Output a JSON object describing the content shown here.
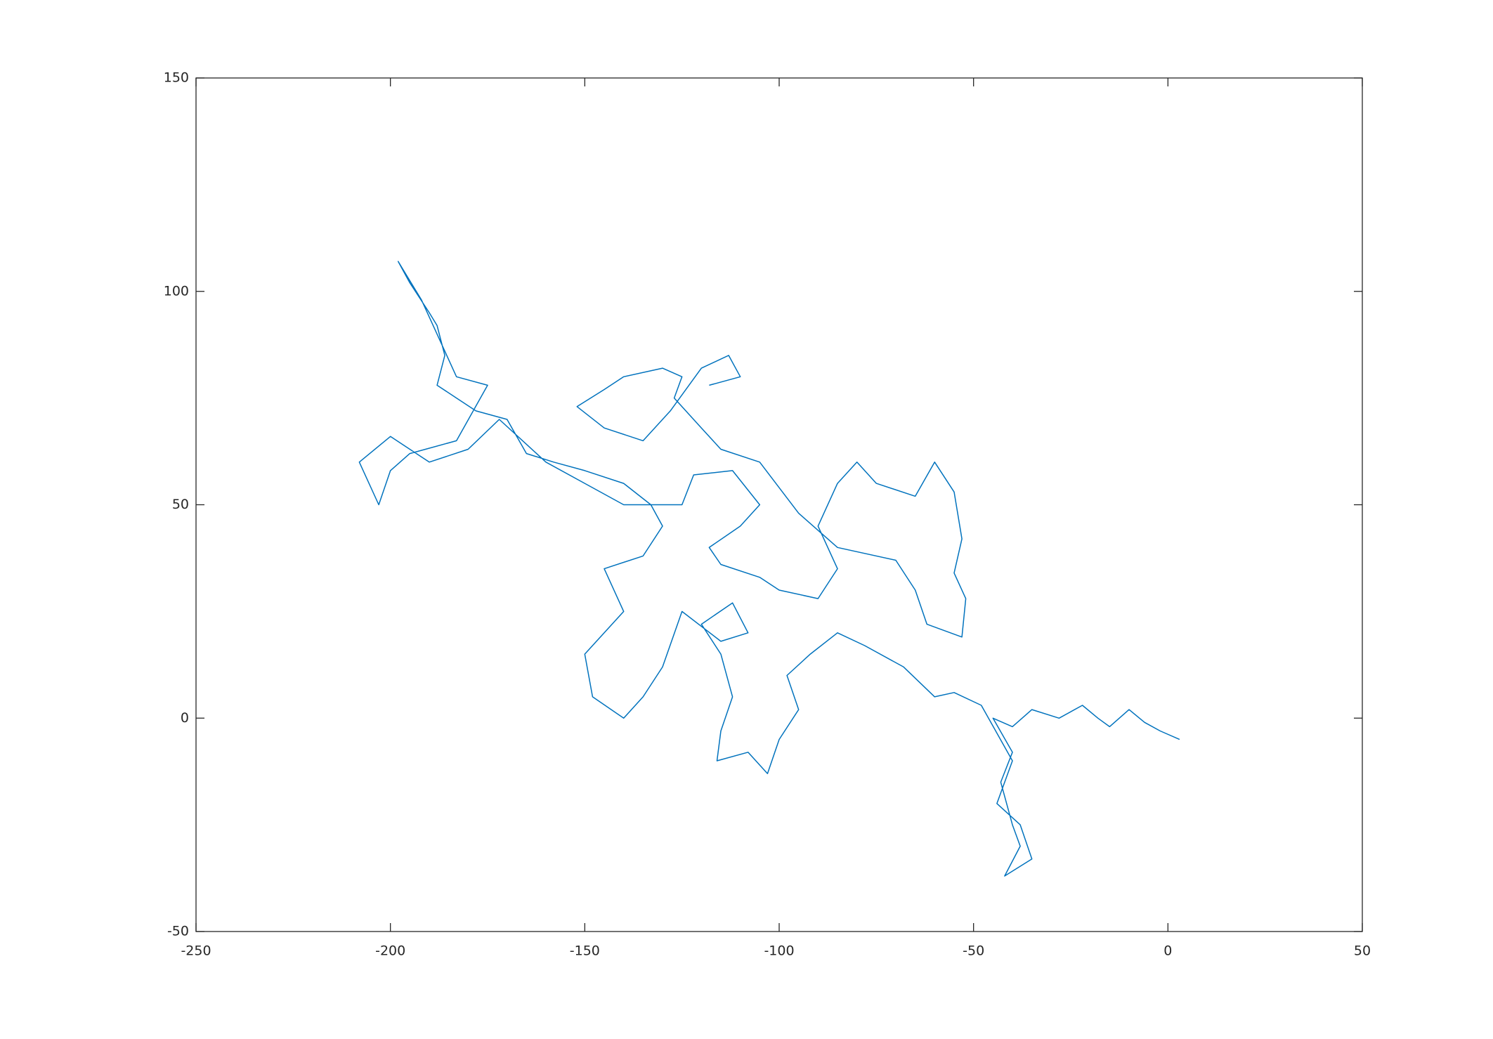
{
  "chart_data": {
    "type": "line",
    "color": "#0072bd",
    "x": [
      3,
      -2,
      -6,
      -10,
      -15,
      -18,
      -22,
      -28,
      -35,
      -40,
      -45,
      -40,
      -43,
      -40,
      -38,
      -42,
      -35,
      -38,
      -44,
      -40,
      -48,
      -55,
      -60,
      -68,
      -78,
      -85,
      -92,
      -98,
      -95,
      -100,
      -103,
      -108,
      -116,
      -115,
      -112,
      -115,
      -120,
      -112,
      -108,
      -115,
      -125,
      -130,
      -135,
      -140,
      -148,
      -150,
      -140,
      -145,
      -135,
      -130,
      -133,
      -140,
      -150,
      -158,
      -165,
      -170,
      -178,
      -183,
      -188,
      -186,
      -188,
      -190,
      -195,
      -198,
      -192,
      -183,
      -175,
      -183,
      -195,
      -200,
      -203,
      -208,
      -200,
      -190,
      -180,
      -172,
      -160,
      -150,
      -140,
      -125,
      -122,
      -112,
      -105,
      -110,
      -118,
      -115,
      -105,
      -100,
      -90,
      -85,
      -90,
      -85,
      -80,
      -75,
      -65,
      -60,
      -55,
      -53,
      -55,
      -52,
      -53,
      -62,
      -65,
      -70,
      -85,
      -95,
      -105,
      -115,
      -120,
      -127,
      -125,
      -130,
      -140,
      -145,
      -152,
      -145,
      -135,
      -128,
      -120,
      -113,
      -110,
      -118
    ],
    "values": [
      -5,
      -3,
      -1,
      2,
      -2,
      0,
      3,
      0,
      2,
      -2,
      0,
      -8,
      -15,
      -25,
      -30,
      -37,
      -33,
      -25,
      -20,
      -10,
      3,
      6,
      5,
      12,
      17,
      20,
      15,
      10,
      2,
      -5,
      -13,
      -8,
      -10,
      -3,
      5,
      15,
      22,
      27,
      20,
      18,
      25,
      12,
      5,
      0,
      5,
      15,
      25,
      35,
      38,
      45,
      50,
      55,
      58,
      60,
      62,
      70,
      72,
      75,
      78,
      85,
      92,
      95,
      102,
      107,
      98,
      80,
      78,
      65,
      62,
      58,
      50,
      60,
      66,
      60,
      63,
      70,
      60,
      55,
      50,
      50,
      57,
      58,
      50,
      45,
      40,
      36,
      33,
      30,
      28,
      35,
      45,
      55,
      60,
      55,
      52,
      60,
      53,
      42,
      34,
      28,
      19,
      22,
      30,
      37,
      40,
      48,
      60,
      63,
      68,
      75,
      80,
      82,
      80,
      77,
      73,
      68,
      65,
      72,
      82,
      85,
      80,
      78
    ],
    "xlim": [
      -250,
      50
    ],
    "xticks": [
      -250,
      -200,
      -150,
      -100,
      -50,
      0,
      50
    ],
    "ylim": [
      -50,
      150
    ],
    "yticks": [
      -50,
      0,
      50,
      100,
      150
    ]
  }
}
